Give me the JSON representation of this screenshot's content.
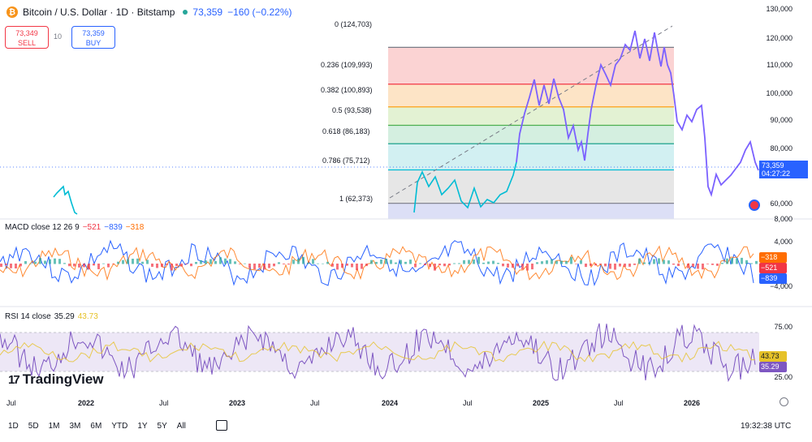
{
  "header": {
    "symbol": "Bitcoin / U.S. Dollar · 1D · Bitstamp",
    "last": "73,359",
    "change": "−160 (−0.22%)",
    "btc_glyph": "₿"
  },
  "trade": {
    "sell_price": "73,349",
    "sell_label": "SELL",
    "spread": "10",
    "buy_price": "73,359",
    "buy_label": "BUY"
  },
  "fib": {
    "levels": [
      {
        "label": "0 (124,703)",
        "price": 124703,
        "color": "#787b86",
        "fill": "#fbd3d3"
      },
      {
        "label": "0.236 (109,993)",
        "price": 109993,
        "color": "#f23645",
        "fill": "#fde4c6"
      },
      {
        "label": "0.382 (100,893)",
        "price": 100893,
        "color": "#ff9800",
        "fill": "#e3f2d3"
      },
      {
        "label": "0.5 (93,538)",
        "price": 93538,
        "color": "#4caf50",
        "fill": "#d4efe0"
      },
      {
        "label": "0.618 (86,183)",
        "price": 86183,
        "color": "#089981",
        "fill": "#d2f0f2"
      },
      {
        "label": "0.786 (75,712)",
        "price": 75712,
        "color": "#00bcd4",
        "fill": "#e6e6e6"
      },
      {
        "label": "1 (62,373)",
        "price": 62373,
        "color": "#787b86",
        "fill": "#dcdff6"
      }
    ],
    "base_price": 56000
  },
  "price_axis": [
    "130,000",
    "120,000",
    "110,000",
    "100,000",
    "90,000",
    "80,000",
    "60,000"
  ],
  "macd_axis": [
    "8,000",
    "4,000",
    "−4,000"
  ],
  "rsi_axis": [
    "75.00",
    "25.00"
  ],
  "current_price": {
    "value": "73,359",
    "countdown": "04:27:22"
  },
  "macd": {
    "legend": "MACD close 12 26 9",
    "v1": "−521",
    "v2": "−839",
    "v3": "−318",
    "tag_hist": "−318",
    "tag_signal": "−521",
    "tag_macd": "−839"
  },
  "rsi": {
    "legend": "RSI 14 close",
    "v1": "35.29",
    "v2": "43.73",
    "tag_ma": "43.73",
    "tag_rsi": "35.29"
  },
  "time_axis": [
    {
      "label": "Jul",
      "year": false
    },
    {
      "label": "2022",
      "year": true
    },
    {
      "label": "Jul",
      "year": false
    },
    {
      "label": "2023",
      "year": true
    },
    {
      "label": "Jul",
      "year": false
    },
    {
      "label": "2024",
      "year": true
    },
    {
      "label": "Jul",
      "year": false
    },
    {
      "label": "2025",
      "year": true
    },
    {
      "label": "Jul",
      "year": false
    },
    {
      "label": "2026",
      "year": true
    }
  ],
  "ranges": [
    "1D",
    "5D",
    "1M",
    "3M",
    "6M",
    "YTD",
    "1Y",
    "5Y",
    "All"
  ],
  "clock": "19:32:38 UTC",
  "brand": {
    "name": "TradingView",
    "mark": "17"
  },
  "colors": {
    "accent": "#2962ff",
    "price_line": "#7b61ff",
    "down": "#f23645",
    "up": "#26a69a",
    "rsi_band": "#ede7f6"
  },
  "icons": [
    "bitcoin-icon",
    "calendar-icon",
    "settings-icon",
    "flag-icon"
  ]
}
